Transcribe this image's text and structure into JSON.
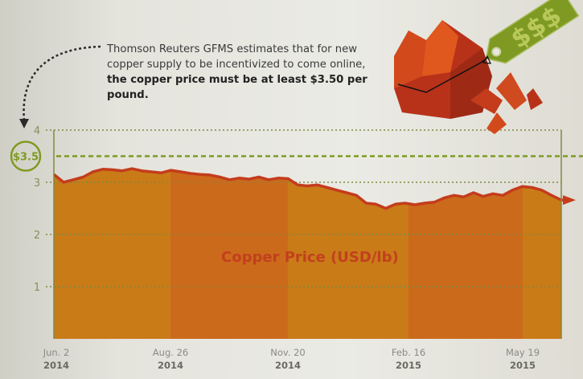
{
  "annotation": {
    "text_plain": "Thomson Reuters GFMS estimates that for new copper supply to be incentivized to come online,",
    "text_bold": "the copper price must be at least $3.50 per pound."
  },
  "price_tag": {
    "symbols": "$$$"
  },
  "threshold": {
    "label": "$3.5",
    "value": 3.5
  },
  "colors": {
    "fill_a": "#c97b18",
    "fill_b": "#cc6a1c",
    "line": "#c43c1c",
    "threshold": "#7f9a22",
    "grid": "#7f8a40"
  },
  "chart_data": {
    "type": "area",
    "title": "Copper Price (USD/lb)",
    "xlabel": "",
    "ylabel": "",
    "ylim": [
      0,
      4
    ],
    "yticks": [
      "1",
      "2",
      "3",
      "4"
    ],
    "x_ticks": [
      {
        "label": "Jun. 2",
        "year": "2014",
        "week": 0
      },
      {
        "label": "Aug. 26",
        "year": "2014",
        "week": 12
      },
      {
        "label": "Nov. 20",
        "year": "2014",
        "week": 24
      },
      {
        "label": "Feb. 16",
        "year": "2015",
        "week": 36
      },
      {
        "label": "May 19",
        "year": "2015",
        "week": 48
      }
    ],
    "x_unit": "weeks since Jun. 2 2014",
    "values": [
      3.15,
      3.0,
      3.05,
      3.1,
      3.2,
      3.25,
      3.24,
      3.22,
      3.26,
      3.22,
      3.2,
      3.18,
      3.23,
      3.2,
      3.17,
      3.15,
      3.14,
      3.1,
      3.05,
      3.08,
      3.06,
      3.1,
      3.05,
      3.08,
      3.07,
      2.95,
      2.93,
      2.95,
      2.9,
      2.85,
      2.8,
      2.75,
      2.6,
      2.58,
      2.5,
      2.58,
      2.6,
      2.57,
      2.6,
      2.62,
      2.7,
      2.75,
      2.72,
      2.8,
      2.73,
      2.78,
      2.75,
      2.85,
      2.92,
      2.9,
      2.85,
      2.75,
      2.66
    ],
    "grid": true
  }
}
